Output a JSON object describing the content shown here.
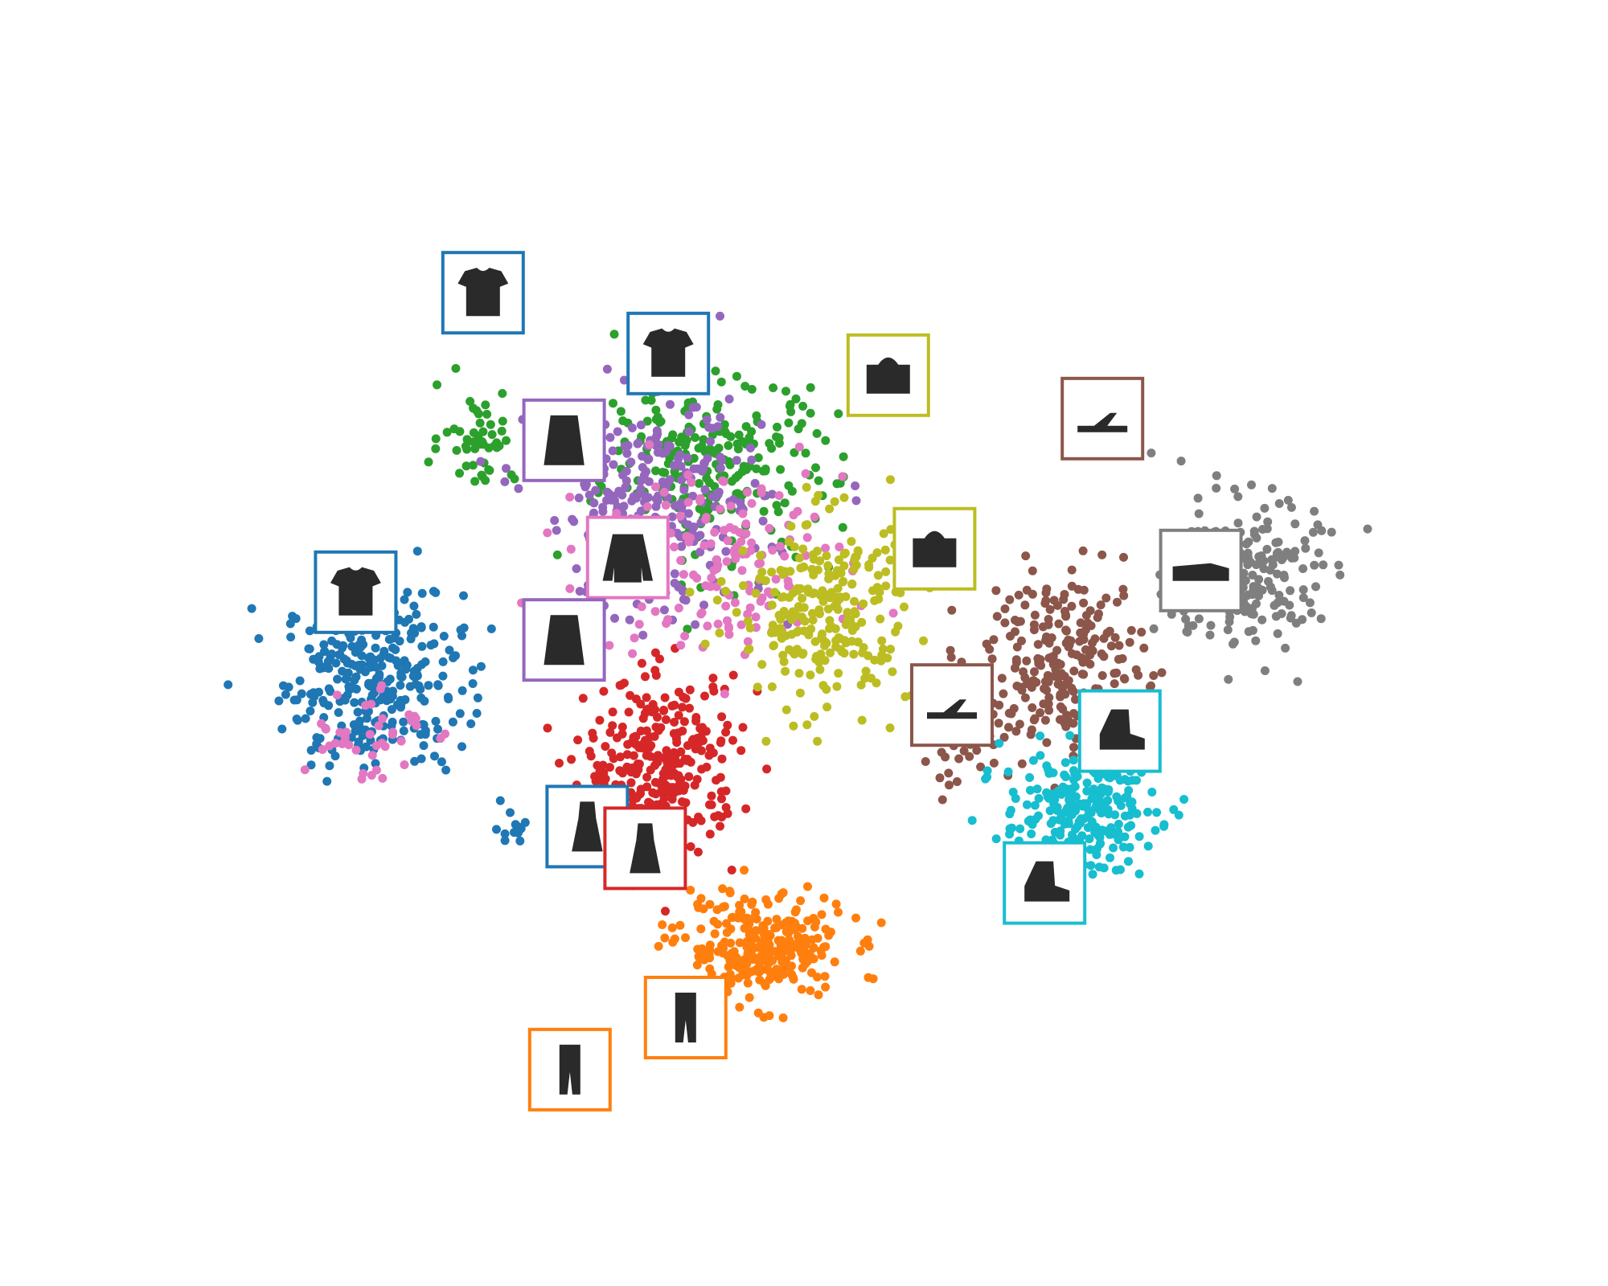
{
  "chart_data": {
    "type": "scatter",
    "title": "",
    "xlabel": "",
    "ylabel": "",
    "axes_visible": false,
    "grid": false,
    "legend": "none",
    "xlim": [
      0,
      100
    ],
    "ylim": [
      0,
      100
    ],
    "series": [
      {
        "color": "#1f77b4",
        "clusters": [
          {
            "cx": 10,
            "cy": 44,
            "sx": 7,
            "sy": 9,
            "n": 320
          },
          {
            "cx": 22,
            "cy": 27,
            "sx": 1.5,
            "sy": 2,
            "n": 12
          }
        ]
      },
      {
        "color": "#ff7f0e",
        "clusters": [
          {
            "cx": 43.5,
            "cy": 13,
            "sx": 6.5,
            "sy": 5.5,
            "n": 280
          }
        ]
      },
      {
        "color": "#2ca02c",
        "clusters": [
          {
            "cx": 39,
            "cy": 68,
            "sx": 10,
            "sy": 10,
            "n": 260
          },
          {
            "cx": 19,
            "cy": 72,
            "sx": 3,
            "sy": 5,
            "n": 50
          }
        ]
      },
      {
        "color": "#d62728",
        "clusters": [
          {
            "cx": 35,
            "cy": 34,
            "sx": 6,
            "sy": 9,
            "n": 300
          }
        ]
      },
      {
        "color": "#9467bd",
        "clusters": [
          {
            "cx": 34,
            "cy": 64,
            "sx": 9,
            "sy": 12,
            "n": 280
          }
        ]
      },
      {
        "color": "#8c564b",
        "clusters": [
          {
            "cx": 70,
            "cy": 46,
            "sx": 6,
            "sy": 9,
            "n": 230
          },
          {
            "cx": 61,
            "cy": 38,
            "sx": 4,
            "sy": 6,
            "n": 50
          }
        ]
      },
      {
        "color": "#e377c2",
        "clusters": [
          {
            "cx": 40,
            "cy": 58,
            "sx": 10,
            "sy": 10,
            "n": 160
          },
          {
            "cx": 9,
            "cy": 38,
            "sx": 5,
            "sy": 6,
            "n": 40
          }
        ]
      },
      {
        "color": "#7f7f7f",
        "clusters": [
          {
            "cx": 85,
            "cy": 56,
            "sx": 6,
            "sy": 8,
            "n": 230
          }
        ]
      },
      {
        "color": "#bcbd22",
        "clusters": [
          {
            "cx": 49,
            "cy": 52,
            "sx": 7,
            "sy": 10,
            "n": 260
          }
        ]
      },
      {
        "color": "#17becf",
        "clusters": [
          {
            "cx": 71,
            "cy": 29,
            "sx": 6,
            "sy": 6,
            "n": 240
          }
        ]
      }
    ],
    "thumbnails": [
      {
        "item": "shirt",
        "color": "#1f77b4",
        "x": 19.5,
        "y": 88.5
      },
      {
        "item": "shirt",
        "color": "#1f77b4",
        "x": 35.5,
        "y": 81.5
      },
      {
        "item": "coat",
        "color": "#9467bd",
        "x": 26.5,
        "y": 71.5
      },
      {
        "item": "bag",
        "color": "#bcbd22",
        "x": 54.5,
        "y": 79
      },
      {
        "item": "sandal",
        "color": "#8c564b",
        "x": 73,
        "y": 74
      },
      {
        "item": "bag",
        "color": "#bcbd22",
        "x": 58.5,
        "y": 59
      },
      {
        "item": "sneaker",
        "color": "#7f7f7f",
        "x": 81.5,
        "y": 56.5
      },
      {
        "item": "tshirt",
        "color": "#1f77b4",
        "x": 8.5,
        "y": 54
      },
      {
        "item": "pullover",
        "color": "#e377c2",
        "x": 32,
        "y": 58
      },
      {
        "item": "coat",
        "color": "#9467bd",
        "x": 26.5,
        "y": 48.5
      },
      {
        "item": "sandal",
        "color": "#8c564b",
        "x": 60,
        "y": 41
      },
      {
        "item": "ankle-boot",
        "color": "#17becf",
        "x": 74.5,
        "y": 38
      },
      {
        "item": "dress",
        "color": "#1f77b4",
        "x": 28.5,
        "y": 27
      },
      {
        "item": "dress",
        "color": "#d62728",
        "x": 33.5,
        "y": 24.5
      },
      {
        "item": "ankle-boot",
        "color": "#17becf",
        "x": 68,
        "y": 20.5
      },
      {
        "item": "trouser",
        "color": "#ff7f0e",
        "x": 37,
        "y": 5
      },
      {
        "item": "trouser",
        "color": "#ff7f0e",
        "x": 27,
        "y": -1
      }
    ]
  }
}
